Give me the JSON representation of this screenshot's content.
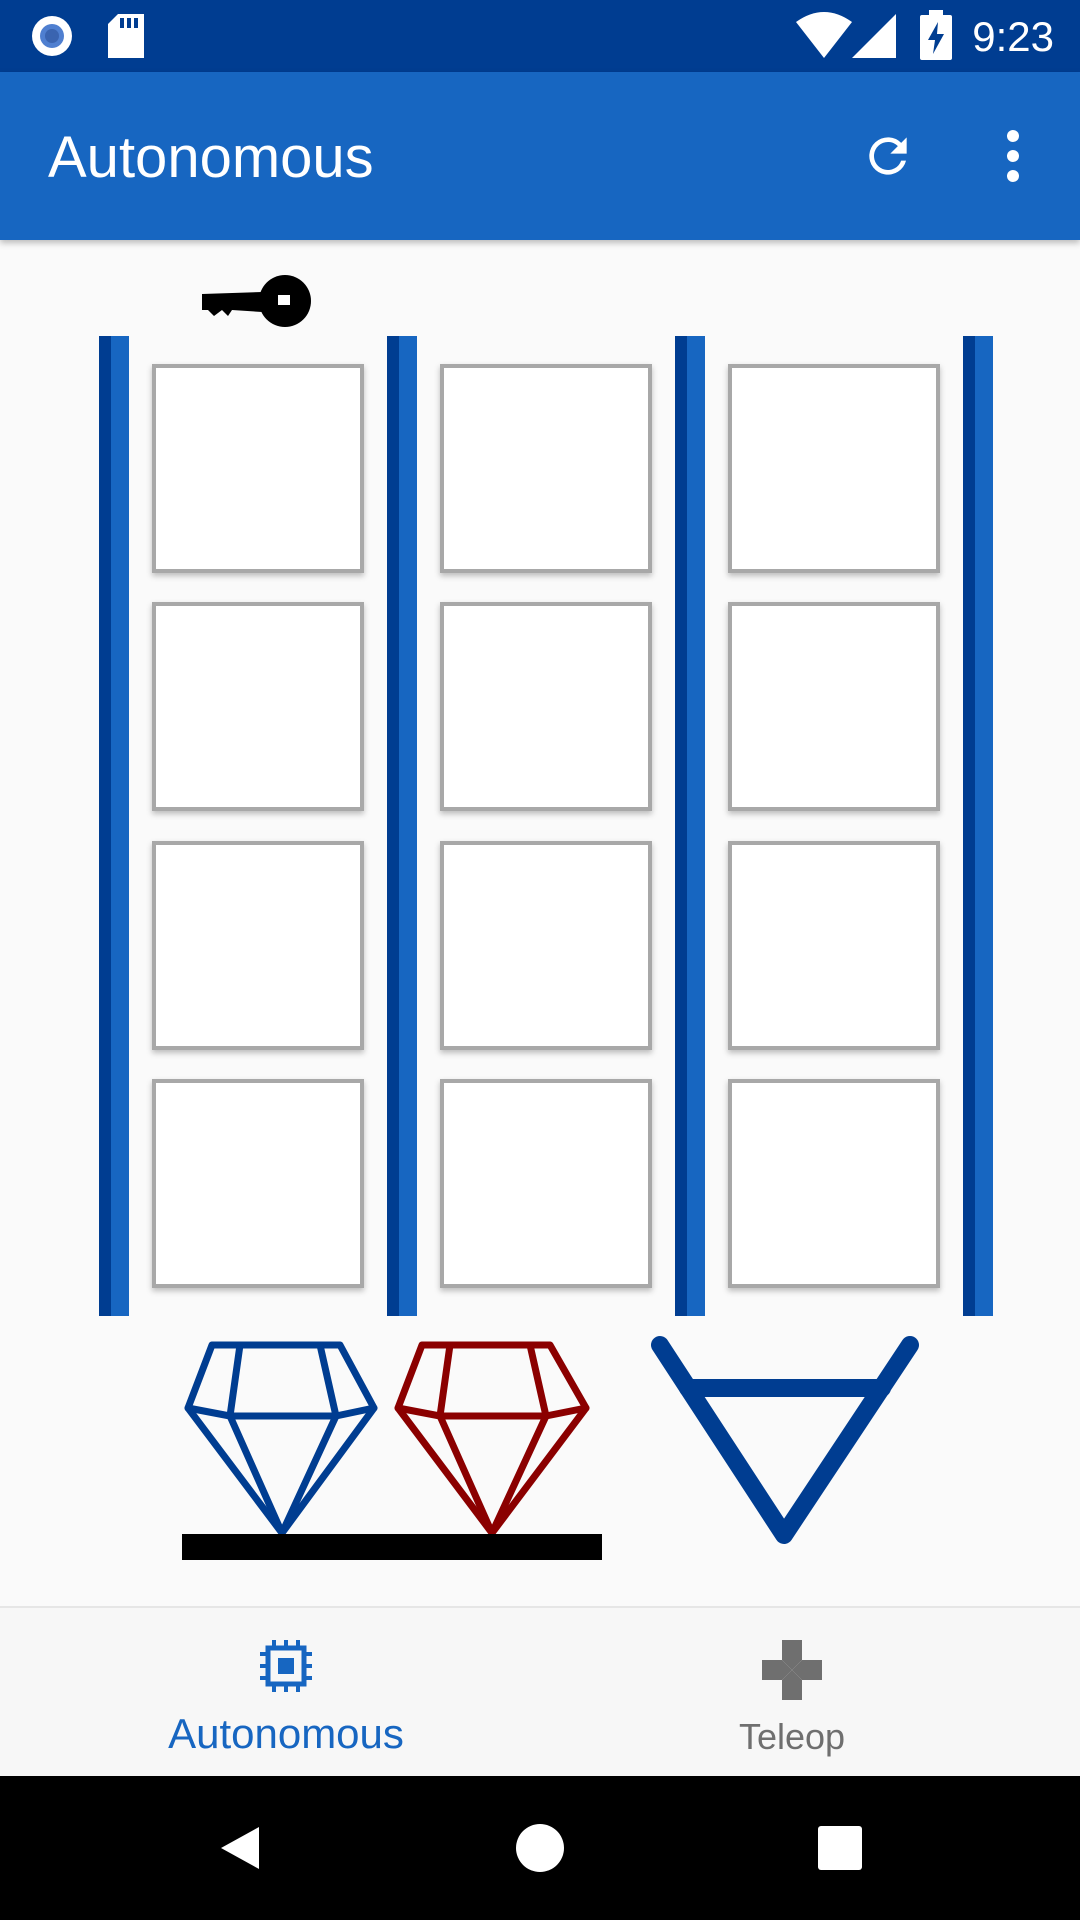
{
  "status_bar": {
    "time": "9:23",
    "icons": [
      "notification-circle-icon",
      "sd-card-icon",
      "wifi-icon",
      "cell-signal-icon",
      "battery-charging-icon"
    ]
  },
  "app_bar": {
    "title": "Autonomous",
    "actions": [
      "refresh-icon",
      "overflow-menu-icon"
    ]
  },
  "field": {
    "columns": 3,
    "rows": 4,
    "key_marker_column": 1,
    "colors": {
      "rail_dark": "#003d91",
      "rail_light": "#1766c1",
      "cell_border": "#a8a8a8",
      "blue_gem": "#003d91",
      "red_gem": "#8b0000",
      "base_bar": "#000000"
    },
    "icons": [
      "key-icon",
      "blue-gem-icon",
      "red-gem-icon",
      "triangle-pit-icon"
    ]
  },
  "bottom_nav": {
    "tabs": [
      {
        "label": "Autonomous",
        "icon": "chip-icon",
        "active": true
      },
      {
        "label": "Teleop",
        "icon": "gamepad-icon",
        "active": false
      }
    ],
    "colors": {
      "active": "#1766c1",
      "inactive": "#6f6f6f"
    }
  },
  "nav_bar": {
    "buttons": [
      "back-icon",
      "home-icon",
      "recents-icon"
    ]
  }
}
